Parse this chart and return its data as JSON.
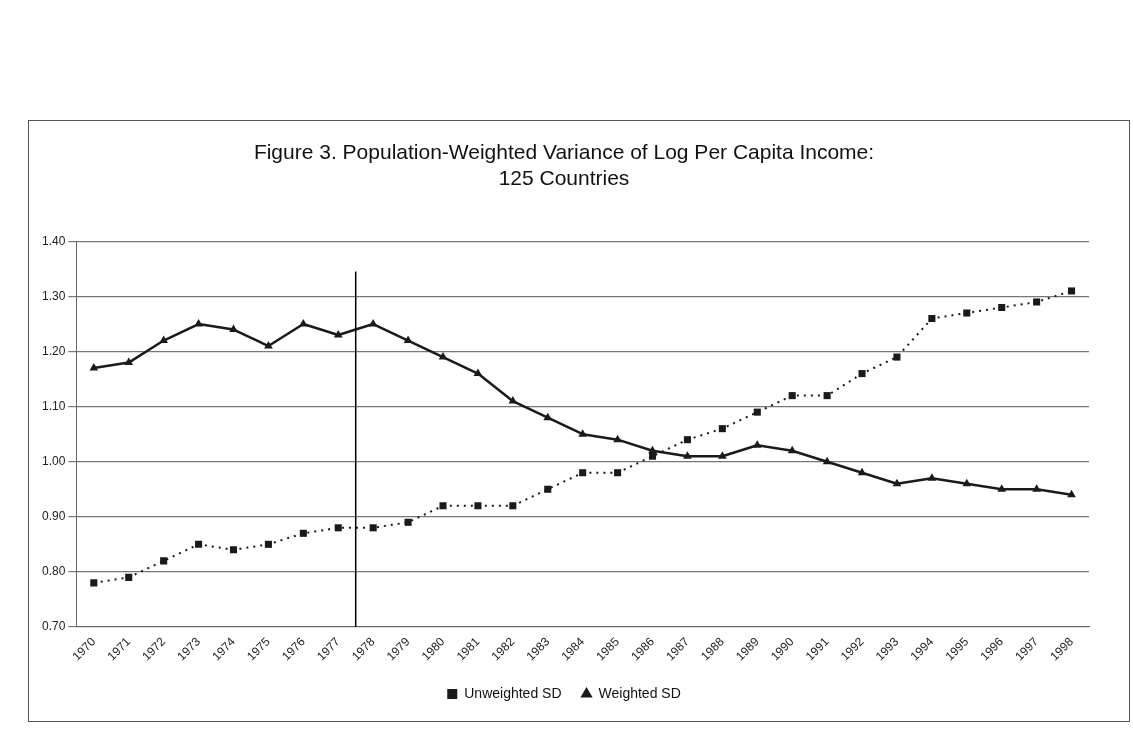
{
  "chart_data": {
    "type": "line",
    "title": [
      "Figure 3. Population-Weighted Variance of Log Per Capita Income:",
      "125 Countries"
    ],
    "categories": [
      "1970",
      "1971",
      "1972",
      "1973",
      "1974",
      "1975",
      "1976",
      "1977",
      "1978",
      "1979",
      "1980",
      "1981",
      "1982",
      "1983",
      "1984",
      "1985",
      "1986",
      "1987",
      "1988",
      "1989",
      "1990",
      "1991",
      "1992",
      "1993",
      "1994",
      "1995",
      "1996",
      "1997",
      "1998"
    ],
    "series": [
      {
        "name": "Unweighted SD",
        "color": "#1a1a1a",
        "marker": "square",
        "line_style": "dotted",
        "values": [
          0.78,
          0.79,
          0.82,
          0.85,
          0.84,
          0.85,
          0.87,
          0.88,
          0.88,
          0.89,
          0.92,
          0.92,
          0.92,
          0.95,
          0.98,
          0.98,
          1.01,
          1.04,
          1.06,
          1.09,
          1.12,
          1.12,
          1.16,
          1.19,
          1.26,
          1.27,
          1.28,
          1.29,
          1.31
        ]
      },
      {
        "name": "Weighted SD",
        "color": "#1a1a1a",
        "marker": "triangle",
        "line_style": "solid",
        "values": [
          1.17,
          1.18,
          1.22,
          1.25,
          1.24,
          1.21,
          1.25,
          1.23,
          1.25,
          1.22,
          1.19,
          1.16,
          1.11,
          1.08,
          1.05,
          1.04,
          1.02,
          1.01,
          1.01,
          1.03,
          1.02,
          1.0,
          0.98,
          0.96,
          0.97,
          0.96,
          0.95,
          0.95,
          0.94
        ]
      }
    ],
    "ylim": [
      0.7,
      1.4
    ],
    "yticks": [
      {
        "value": 0.7,
        "label": "0.70"
      },
      {
        "value": 0.8,
        "label": "0.80"
      },
      {
        "value": 0.9,
        "label": "0.90"
      },
      {
        "value": 1.0,
        "label": "1.00"
      },
      {
        "value": 1.1,
        "label": "1.10"
      },
      {
        "value": 1.2,
        "label": "1.20"
      },
      {
        "value": 1.3,
        "label": "1.30"
      },
      {
        "value": 1.4,
        "label": "1.40"
      }
    ],
    "grid": "y",
    "legend": "bottom",
    "ref_lines": [
      {
        "axis": "x",
        "value": "1978",
        "color": "#000000"
      }
    ]
  }
}
